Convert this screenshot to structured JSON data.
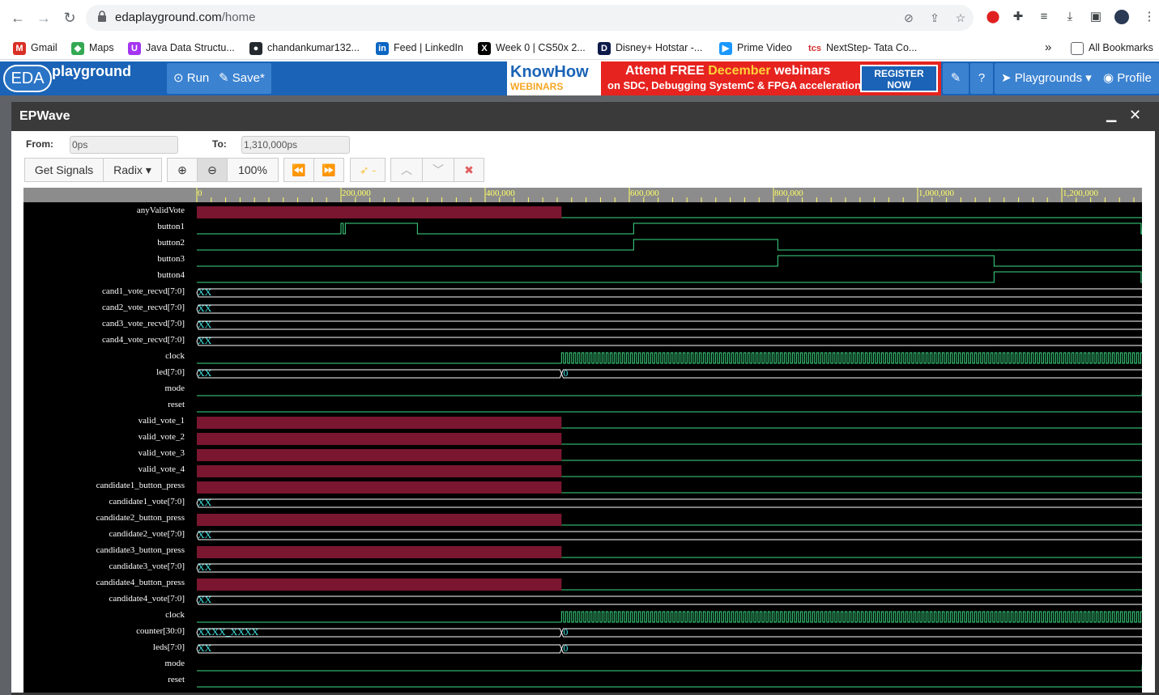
{
  "browser": {
    "url_host": "edaplayground.com",
    "url_path": "/home",
    "bookmarks": [
      {
        "label": "Gmail",
        "icon": "gmail-icon",
        "color": "#d93025",
        "glyph": "M"
      },
      {
        "label": "Maps",
        "icon": "maps-icon",
        "color": "#34a853",
        "glyph": "◆"
      },
      {
        "label": "Java Data Structu...",
        "icon": "udemy-icon",
        "color": "#a435f0",
        "glyph": "U"
      },
      {
        "label": "chandankumar132...",
        "icon": "github-icon",
        "color": "#24292e",
        "glyph": "●"
      },
      {
        "label": "Feed | LinkedIn",
        "icon": "linkedin-icon",
        "color": "#0a66c2",
        "glyph": "in"
      },
      {
        "label": "Week 0 | CS50x 2...",
        "icon": "cs50-icon",
        "color": "#000000",
        "glyph": "X"
      },
      {
        "label": "Disney+ Hotstar -...",
        "icon": "hotstar-icon",
        "color": "#0c1a4a",
        "glyph": "D"
      },
      {
        "label": "Prime Video",
        "icon": "prime-video-icon",
        "color": "#1a98ff",
        "glyph": "▶"
      },
      {
        "label": "NextStep- Tata Co...",
        "icon": "tcs-icon",
        "color": "#ffffff",
        "glyph": "tcs"
      }
    ],
    "more_label": "»",
    "all_bookmarks_label": "All Bookmarks"
  },
  "eda": {
    "logo_text": "EDA",
    "logo_sub": "playground",
    "run_label": "Run",
    "save_label": "Save*",
    "playgrounds_label": "Playgrounds",
    "profile_label": "Profile",
    "banner": {
      "brand1": "KnowHow",
      "brand2": "WEBINARS",
      "line1_a": "Attend FREE ",
      "line1_b": "December",
      "line1_c": " webinars",
      "line2": "on SDC, Debugging SystemC & FPGA acceleration",
      "cta_1": "REGISTER",
      "cta_2": "NOW"
    }
  },
  "epwave": {
    "title": "EPWave",
    "from_label": "From:",
    "from_value": "0ps",
    "to_label": "To:",
    "to_value": "1,310,000ps",
    "get_signals_label": "Get Signals",
    "radix_label": "Radix",
    "zoom_value": "100%",
    "ruler_labels": [
      "0",
      "200,000",
      "400,000",
      "600,000",
      "800,000",
      "1,000,000",
      "1,200,000"
    ],
    "signals": [
      {
        "name": "anyValidVote",
        "type": "xbit",
        "trans": 506
      },
      {
        "name": "button1",
        "type": "bit",
        "edges": [
          [
            0,
            0
          ],
          [
            200,
            1
          ],
          [
            203,
            0
          ],
          [
            206,
            1
          ],
          [
            306,
            0
          ],
          [
            606,
            1
          ],
          [
            1310,
            0
          ],
          [
            1312,
            1
          ]
        ]
      },
      {
        "name": "button2",
        "type": "bit",
        "edges": [
          [
            0,
            0
          ],
          [
            606,
            1
          ],
          [
            806,
            0
          ]
        ]
      },
      {
        "name": "button3",
        "type": "bit",
        "edges": [
          [
            0,
            0
          ],
          [
            806,
            1
          ],
          [
            1106,
            0
          ]
        ]
      },
      {
        "name": "button4",
        "type": "bit",
        "edges": [
          [
            0,
            0
          ],
          [
            1106,
            1
          ],
          [
            1310,
            0
          ]
        ]
      },
      {
        "name": "cand1_vote_recvd[7:0]",
        "type": "bus",
        "labels": [
          "XX"
        ]
      },
      {
        "name": "cand2_vote_recvd[7:0]",
        "type": "bus",
        "labels": [
          "XX"
        ]
      },
      {
        "name": "cand3_vote_recvd[7:0]",
        "type": "bus",
        "labels": [
          "XX"
        ]
      },
      {
        "name": "cand4_vote_recvd[7:0]",
        "type": "bus",
        "labels": [
          "XX"
        ]
      },
      {
        "name": "clock",
        "type": "clock",
        "start": 506
      },
      {
        "name": "led[7:0]",
        "type": "bus",
        "labels": [
          "XX",
          "0"
        ],
        "trans": 506
      },
      {
        "name": "mode",
        "type": "bit",
        "edges": [
          [
            0,
            0
          ],
          [
            1312,
            1
          ]
        ]
      },
      {
        "name": "reset",
        "type": "bit",
        "edges": [
          [
            0,
            0
          ]
        ]
      },
      {
        "name": "valid_vote_1",
        "type": "xbit",
        "trans": 506
      },
      {
        "name": "valid_vote_2",
        "type": "xbit",
        "trans": 506
      },
      {
        "name": "valid_vote_3",
        "type": "xbit",
        "trans": 506
      },
      {
        "name": "valid_vote_4",
        "type": "xbit",
        "trans": 506
      },
      {
        "name": "candidate1_button_press",
        "type": "xbit",
        "trans": 506
      },
      {
        "name": "candidate1_vote[7:0]",
        "type": "bus",
        "labels": [
          "XX"
        ]
      },
      {
        "name": "candidate2_button_press",
        "type": "xbit",
        "trans": 506
      },
      {
        "name": "candidate2_vote[7:0]",
        "type": "bus",
        "labels": [
          "XX"
        ]
      },
      {
        "name": "candidate3_button_press",
        "type": "xbit",
        "trans": 506
      },
      {
        "name": "candidate3_vote[7:0]",
        "type": "bus",
        "labels": [
          "XX"
        ]
      },
      {
        "name": "candidate4_button_press",
        "type": "xbit",
        "trans": 506
      },
      {
        "name": "candidate4_vote[7:0]",
        "type": "bus",
        "labels": [
          "XX"
        ]
      },
      {
        "name": "clock",
        "type": "clock",
        "start": 506
      },
      {
        "name": "counter[30:0]",
        "type": "bus",
        "labels": [
          "XXXX_XXXX",
          "0"
        ],
        "trans": 506
      },
      {
        "name": "leds[7:0]",
        "type": "bus",
        "labels": [
          "XX",
          "0"
        ],
        "trans": 506
      },
      {
        "name": "mode",
        "type": "bit",
        "edges": [
          [
            0,
            0
          ],
          [
            1312,
            1
          ]
        ]
      },
      {
        "name": "reset",
        "type": "bit",
        "edges": [
          [
            0,
            0
          ]
        ]
      }
    ],
    "colors": {
      "wave": "#3ddc84",
      "x_fill": "#7a1630",
      "bus_text": "#41e4e4",
      "ruler_text": "#ffff66"
    }
  }
}
